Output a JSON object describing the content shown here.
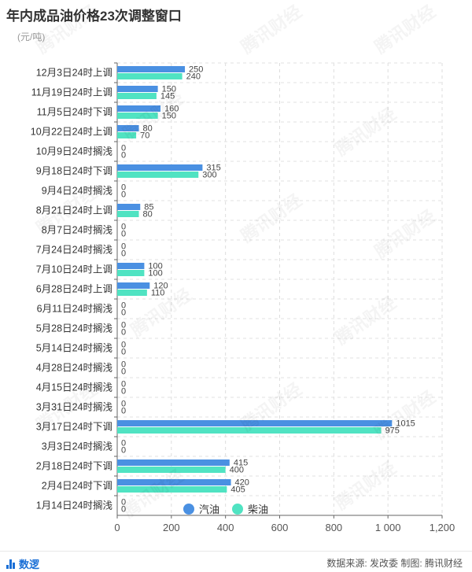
{
  "header": {
    "title": "年内成品油价格23次调整窗口",
    "unit": "(元/吨)"
  },
  "footer": {
    "brand": "数逻",
    "source": "数据来源: 发改委 制图: 腾讯财经"
  },
  "watermark_text": "腾讯财经",
  "chart_data": {
    "type": "bar",
    "orientation": "horizontal",
    "categories": [
      "12月3日24时上调",
      "11月19日24时上调",
      "11月5日24时下调",
      "10月22日24时上调",
      "10月9日24时搁浅",
      "9月18日24时下调",
      "9月4日24时搁浅",
      "8月21日24时上调",
      "8月7日24时搁浅",
      "7月24日24时搁浅",
      "7月10日24时上调",
      "6月28日24时上调",
      "6月11日24时搁浅",
      "5月28日24时搁浅",
      "5月14日24时搁浅",
      "4月28日24时搁浅",
      "4月15日24时搁浅",
      "3月31日24时搁浅",
      "3月17日24时下调",
      "3月3日24时搁浅",
      "2月18日24时下调",
      "2月4日24时下调",
      "1月14日24时搁浅"
    ],
    "series": [
      {
        "name": "汽油",
        "color": "#4a90e2",
        "values": [
          250,
          150,
          160,
          80,
          0,
          315,
          0,
          85,
          0,
          0,
          100,
          120,
          0,
          0,
          0,
          0,
          0,
          0,
          1015,
          0,
          415,
          420,
          0
        ],
        "labels": [
          "250",
          "150",
          "160",
          "80",
          "0",
          "315",
          "0",
          "85",
          "0",
          "0",
          "100",
          "120",
          "0",
          "0",
          "0",
          "0",
          "0",
          "0",
          "1015",
          "0",
          "415",
          "420",
          "0"
        ]
      },
      {
        "name": "柴油",
        "color": "#50e3c2",
        "values": [
          240,
          145,
          150,
          70,
          0,
          300,
          0,
          80,
          0,
          0,
          100,
          110,
          0,
          0,
          0,
          0,
          0,
          0,
          975,
          0,
          400,
          405,
          0
        ],
        "labels": [
          "240",
          "145",
          "150",
          "70",
          "0",
          "300",
          "0",
          "80",
          "0",
          "0",
          "100",
          "110",
          "0",
          "0",
          "0",
          "0",
          "0",
          "0",
          "975",
          "0",
          "400",
          "405",
          "0"
        ]
      }
    ],
    "xlim": [
      0,
      1200
    ],
    "xticks": [
      0,
      200,
      400,
      600,
      800,
      1000,
      1200
    ],
    "xtick_labels": [
      "0",
      "200",
      "400",
      "600",
      "800",
      "1 000",
      "1,200"
    ],
    "grid": true,
    "legend_position": "bottom-right"
  }
}
